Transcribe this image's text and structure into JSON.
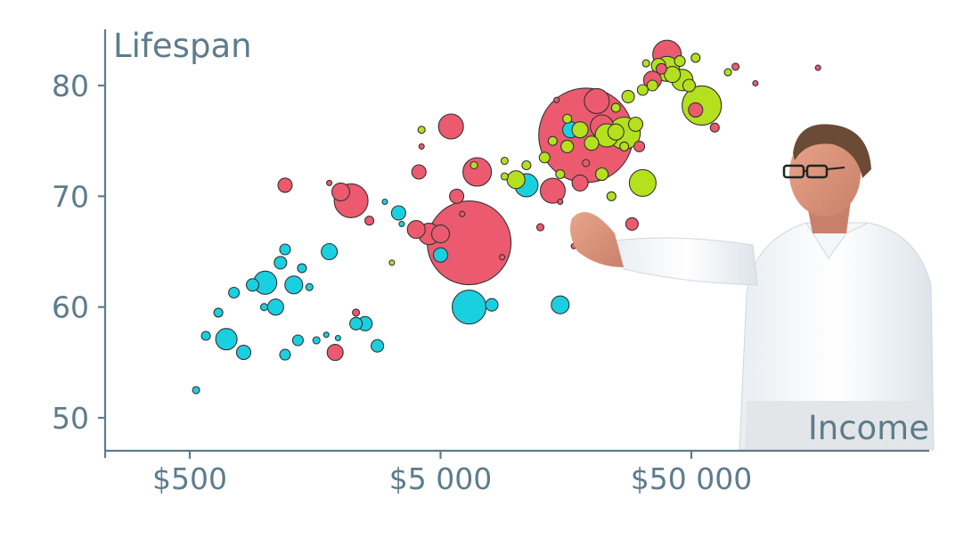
{
  "chart_data": {
    "type": "scatter",
    "title": "",
    "xlabel": "Income",
    "ylabel": "Lifespan",
    "x_scale": "log",
    "xlim": [
      250,
      700000
    ],
    "ylim": [
      47,
      85
    ],
    "x_ticks": [
      {
        "value": 500,
        "label": "$500"
      },
      {
        "value": 5000,
        "label": "$5 000"
      },
      {
        "value": 50000,
        "label": "$50 000"
      }
    ],
    "y_ticks": [
      {
        "value": 50,
        "label": "50"
      },
      {
        "value": 60,
        "label": "60"
      },
      {
        "value": 70,
        "label": "70"
      },
      {
        "value": 80,
        "label": "80"
      }
    ],
    "grid": false,
    "legend": "none",
    "group_colors": {
      "africa": "#1ad0e0",
      "asia": "#ec5a6f",
      "europe": "#b5e01e"
    },
    "bubble_size_unit": "relative population",
    "points": [
      {
        "group": "asia",
        "x": 19000,
        "y": 75.5,
        "size": 53
      },
      {
        "group": "asia",
        "x": 6500,
        "y": 65.8,
        "size": 47
      },
      {
        "group": "asia",
        "x": 40000,
        "y": 82.8,
        "size": 16
      },
      {
        "group": "asia",
        "x": 5500,
        "y": 76.3,
        "size": 14
      },
      {
        "group": "asia",
        "x": 14000,
        "y": 70.5,
        "size": 14
      },
      {
        "group": "asia",
        "x": 7000,
        "y": 72.2,
        "size": 16
      },
      {
        "group": "asia",
        "x": 2200,
        "y": 69.6,
        "size": 19
      },
      {
        "group": "asia",
        "x": 21000,
        "y": 78.6,
        "size": 14
      },
      {
        "group": "asia",
        "x": 22000,
        "y": 76.3,
        "size": 13
      },
      {
        "group": "asia",
        "x": 4500,
        "y": 66.6,
        "size": 12
      },
      {
        "group": "asia",
        "x": 5000,
        "y": 66.6,
        "size": 10
      },
      {
        "group": "asia",
        "x": 2000,
        "y": 70.4,
        "size": 10
      },
      {
        "group": "asia",
        "x": 4000,
        "y": 67.0,
        "size": 10
      },
      {
        "group": "asia",
        "x": 1200,
        "y": 71.0,
        "size": 8
      },
      {
        "group": "asia",
        "x": 4100,
        "y": 72.2,
        "size": 8
      },
      {
        "group": "asia",
        "x": 5800,
        "y": 70.0,
        "size": 8
      },
      {
        "group": "asia",
        "x": 18000,
        "y": 71.2,
        "size": 9
      },
      {
        "group": "asia",
        "x": 35000,
        "y": 80.5,
        "size": 10
      },
      {
        "group": "asia",
        "x": 38000,
        "y": 81.5,
        "size": 6
      },
      {
        "group": "asia",
        "x": 52000,
        "y": 77.8,
        "size": 8
      },
      {
        "group": "asia",
        "x": 1900,
        "y": 55.9,
        "size": 9
      },
      {
        "group": "asia",
        "x": 29000,
        "y": 67.5,
        "size": 7
      },
      {
        "group": "asia",
        "x": 2300,
        "y": 59.5,
        "size": 4
      },
      {
        "group": "asia",
        "x": 2600,
        "y": 67.8,
        "size": 5
      },
      {
        "group": "asia",
        "x": 31000,
        "y": 74.5,
        "size": 6
      },
      {
        "group": "asia",
        "x": 12500,
        "y": 67.2,
        "size": 4
      },
      {
        "group": "asia",
        "x": 17000,
        "y": 65.5,
        "size": 3
      },
      {
        "group": "asia",
        "x": 75000,
        "y": 81.7,
        "size": 4
      },
      {
        "group": "asia",
        "x": 62000,
        "y": 76.2,
        "size": 5
      },
      {
        "group": "asia",
        "x": 19000,
        "y": 73.0,
        "size": 4
      },
      {
        "group": "asia",
        "x": 15000,
        "y": 69.5,
        "size": 3
      },
      {
        "group": "asia",
        "x": 160000,
        "y": 81.6,
        "size": 3
      },
      {
        "group": "asia",
        "x": 90000,
        "y": 80.2,
        "size": 3
      },
      {
        "group": "asia",
        "x": 4200,
        "y": 74.5,
        "size": 3
      },
      {
        "group": "asia",
        "x": 1800,
        "y": 71.2,
        "size": 3
      },
      {
        "group": "asia",
        "x": 6100,
        "y": 68.4,
        "size": 3
      },
      {
        "group": "asia",
        "x": 8800,
        "y": 64.5,
        "size": 3
      },
      {
        "group": "asia",
        "x": 14500,
        "y": 78.7,
        "size": 3
      },
      {
        "group": "africa",
        "x": 6500,
        "y": 60.0,
        "size": 19
      },
      {
        "group": "africa",
        "x": 11000,
        "y": 71.0,
        "size": 13
      },
      {
        "group": "africa",
        "x": 15000,
        "y": 60.2,
        "size": 10
      },
      {
        "group": "africa",
        "x": 5000,
        "y": 64.7,
        "size": 8
      },
      {
        "group": "africa",
        "x": 1000,
        "y": 62.2,
        "size": 13
      },
      {
        "group": "africa",
        "x": 1100,
        "y": 60.0,
        "size": 9
      },
      {
        "group": "africa",
        "x": 1300,
        "y": 62.0,
        "size": 10
      },
      {
        "group": "africa",
        "x": 1150,
        "y": 64.0,
        "size": 7
      },
      {
        "group": "africa",
        "x": 1800,
        "y": 65.0,
        "size": 9
      },
      {
        "group": "africa",
        "x": 700,
        "y": 57.1,
        "size": 12
      },
      {
        "group": "africa",
        "x": 890,
        "y": 62.0,
        "size": 7
      },
      {
        "group": "africa",
        "x": 1200,
        "y": 65.2,
        "size": 6
      },
      {
        "group": "africa",
        "x": 1400,
        "y": 63.5,
        "size": 5
      },
      {
        "group": "africa",
        "x": 2500,
        "y": 58.5,
        "size": 8
      },
      {
        "group": "africa",
        "x": 2800,
        "y": 56.5,
        "size": 7
      },
      {
        "group": "africa",
        "x": 2300,
        "y": 58.5,
        "size": 7
      },
      {
        "group": "africa",
        "x": 820,
        "y": 55.9,
        "size": 8
      },
      {
        "group": "africa",
        "x": 750,
        "y": 61.3,
        "size": 6
      },
      {
        "group": "africa",
        "x": 1350,
        "y": 57.0,
        "size": 6
      },
      {
        "group": "africa",
        "x": 1200,
        "y": 55.7,
        "size": 6
      },
      {
        "group": "africa",
        "x": 580,
        "y": 57.4,
        "size": 5
      },
      {
        "group": "africa",
        "x": 650,
        "y": 59.5,
        "size": 5
      },
      {
        "group": "africa",
        "x": 3400,
        "y": 68.5,
        "size": 8
      },
      {
        "group": "africa",
        "x": 16500,
        "y": 76.0,
        "size": 9
      },
      {
        "group": "africa",
        "x": 8000,
        "y": 60.2,
        "size": 7
      },
      {
        "group": "africa",
        "x": 1600,
        "y": 57.0,
        "size": 4
      },
      {
        "group": "africa",
        "x": 1500,
        "y": 61.8,
        "size": 4
      },
      {
        "group": "africa",
        "x": 990,
        "y": 60.0,
        "size": 4
      },
      {
        "group": "africa",
        "x": 1750,
        "y": 57.5,
        "size": 3
      },
      {
        "group": "africa",
        "x": 1950,
        "y": 57.2,
        "size": 3
      },
      {
        "group": "africa",
        "x": 3500,
        "y": 67.5,
        "size": 3
      },
      {
        "group": "africa",
        "x": 3000,
        "y": 69.5,
        "size": 3
      },
      {
        "group": "africa",
        "x": 530,
        "y": 52.5,
        "size": 4
      },
      {
        "group": "europe",
        "x": 55000,
        "y": 78.2,
        "size": 22
      },
      {
        "group": "europe",
        "x": 27000,
        "y": 75.7,
        "size": 18
      },
      {
        "group": "europe",
        "x": 23000,
        "y": 75.5,
        "size": 13
      },
      {
        "group": "europe",
        "x": 32000,
        "y": 71.2,
        "size": 15
      },
      {
        "group": "europe",
        "x": 40000,
        "y": 81.5,
        "size": 14
      },
      {
        "group": "europe",
        "x": 46000,
        "y": 80.5,
        "size": 12
      },
      {
        "group": "europe",
        "x": 18000,
        "y": 76.0,
        "size": 9
      },
      {
        "group": "europe",
        "x": 20000,
        "y": 74.8,
        "size": 8
      },
      {
        "group": "europe",
        "x": 25000,
        "y": 75.8,
        "size": 9
      },
      {
        "group": "europe",
        "x": 30000,
        "y": 76.5,
        "size": 8
      },
      {
        "group": "europe",
        "x": 22000,
        "y": 72.0,
        "size": 7
      },
      {
        "group": "europe",
        "x": 10000,
        "y": 71.5,
        "size": 10
      },
      {
        "group": "europe",
        "x": 16000,
        "y": 74.5,
        "size": 7
      },
      {
        "group": "europe",
        "x": 28000,
        "y": 79.0,
        "size": 7
      },
      {
        "group": "europe",
        "x": 37000,
        "y": 81.8,
        "size": 8
      },
      {
        "group": "europe",
        "x": 42000,
        "y": 81.0,
        "size": 9
      },
      {
        "group": "europe",
        "x": 49000,
        "y": 80.0,
        "size": 7
      },
      {
        "group": "europe",
        "x": 35000,
        "y": 80.0,
        "size": 6
      },
      {
        "group": "europe",
        "x": 13000,
        "y": 73.5,
        "size": 6
      },
      {
        "group": "europe",
        "x": 15000,
        "y": 72.0,
        "size": 5
      },
      {
        "group": "europe",
        "x": 11000,
        "y": 72.8,
        "size": 5
      },
      {
        "group": "europe",
        "x": 9000,
        "y": 73.2,
        "size": 4
      },
      {
        "group": "europe",
        "x": 32000,
        "y": 79.6,
        "size": 6
      },
      {
        "group": "europe",
        "x": 27000,
        "y": 74.5,
        "size": 5
      },
      {
        "group": "europe",
        "x": 24000,
        "y": 70.0,
        "size": 5
      },
      {
        "group": "europe",
        "x": 45000,
        "y": 82.2,
        "size": 6
      },
      {
        "group": "europe",
        "x": 52000,
        "y": 82.5,
        "size": 5
      },
      {
        "group": "europe",
        "x": 33000,
        "y": 82.0,
        "size": 4
      },
      {
        "group": "europe",
        "x": 16000,
        "y": 77.0,
        "size": 5
      },
      {
        "group": "europe",
        "x": 14000,
        "y": 75.0,
        "size": 5
      },
      {
        "group": "europe",
        "x": 25000,
        "y": 78.0,
        "size": 5
      },
      {
        "group": "europe",
        "x": 4200,
        "y": 76.0,
        "size": 4
      },
      {
        "group": "europe",
        "x": 6800,
        "y": 72.8,
        "size": 4
      },
      {
        "group": "europe",
        "x": 3200,
        "y": 64.0,
        "size": 3
      },
      {
        "group": "europe",
        "x": 70000,
        "y": 81.2,
        "size": 4
      },
      {
        "group": "europe",
        "x": 9000,
        "y": 71.8,
        "size": 4
      }
    ]
  },
  "presenter": {
    "description": ""
  }
}
